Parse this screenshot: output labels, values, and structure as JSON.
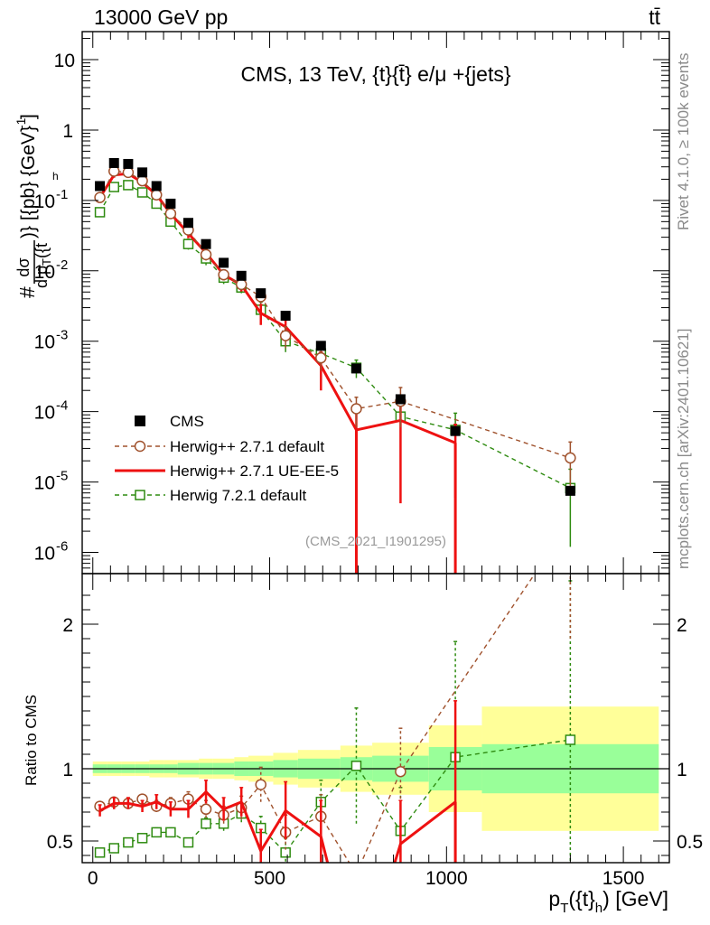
{
  "header": {
    "beam": "13000 GeV pp",
    "process": "tt̄"
  },
  "side_labels": {
    "rivet": "Rivet 4.1.0, ≥ 100k events",
    "source": "mcplots.cern.ch [arXiv:2401.10621]"
  },
  "analysis_id": "(CMS_2021_I1901295)",
  "colors": {
    "data": "#000000",
    "herwigpp_default": "#a0522d",
    "herwigpp_ueee5": "#ee1111",
    "herwig721": "#2e8b10",
    "band_outer": "#ffff99",
    "band_inner": "#99ff99"
  },
  "chart_data": [
    {
      "type": "scatter",
      "panel": "main",
      "title": "CMS, 13 TeV, {t}{t̄} e/μ +{jets}",
      "ylabel_numerator": "#dσ",
      "ylabel_denominator": "d p_T({t_h})",
      "ylabel_suffix": ")} [{pb} {GeV}",
      "ylabel_superscript": "-1",
      "ylabel_close": "]",
      "yscale": "log",
      "ylim": [
        5e-07,
        25
      ],
      "xlim": [
        -30,
        1630
      ],
      "y_ticks": [
        {
          "value": 1e-06,
          "base": "10",
          "exp": "-6"
        },
        {
          "value": 1e-05,
          "base": "10",
          "exp": "-5"
        },
        {
          "value": 0.0001,
          "base": "10",
          "exp": "-4"
        },
        {
          "value": 0.001,
          "base": "10",
          "exp": "-3"
        },
        {
          "value": 0.01,
          "base": "10",
          "exp": "-2"
        },
        {
          "value": 0.1,
          "base": "10",
          "exp": "-1"
        },
        {
          "value": 1,
          "base": "1",
          "exp": ""
        },
        {
          "value": 10,
          "base": "10",
          "exp": ""
        }
      ],
      "legend": [
        {
          "key": "cms",
          "label": "CMS"
        },
        {
          "key": "hpp_def",
          "label": "Herwig++ 2.7.1 default"
        },
        {
          "key": "hpp_ue",
          "label": "Herwig++ 2.7.1 UE-EE-5"
        },
        {
          "key": "h721",
          "label": "Herwig 7.2.1 default"
        }
      ],
      "series": [
        {
          "key": "cms",
          "name": "CMS",
          "marker": "square",
          "x": [
            20,
            60,
            100,
            140,
            180,
            220,
            270,
            320,
            370,
            420,
            475,
            545,
            645,
            745,
            870,
            1025,
            1350
          ],
          "y": [
            0.16,
            0.34,
            0.33,
            0.25,
            0.16,
            0.09,
            0.048,
            0.024,
            0.013,
            0.0085,
            0.0048,
            0.0023,
            0.00086,
            0.00041,
            0.00015,
            5.3e-05,
            7.5e-06
          ]
        },
        {
          "key": "hpp_def",
          "name": "Herwig++ 2.7.1 default",
          "marker": "circle",
          "line": "dashed",
          "x": [
            20,
            60,
            100,
            140,
            180,
            220,
            270,
            320,
            370,
            420,
            475,
            545,
            645,
            745,
            870,
            1350
          ],
          "y": [
            0.11,
            0.26,
            0.25,
            0.19,
            0.12,
            0.065,
            0.038,
            0.017,
            0.0088,
            0.0064,
            0.0043,
            0.0012,
            0.00058,
            0.00011,
            0.00014,
            2.2e-05
          ],
          "err": [
            0.015,
            0.02,
            0.02,
            0.02,
            0.015,
            0.008,
            0.005,
            0.003,
            0.0015,
            0.001,
            0.0009,
            0.0004,
            0.0002,
            5e-05,
            8e-05,
            1.5e-05
          ]
        },
        {
          "key": "hpp_ue",
          "name": "Herwig++ 2.7.1 UE-EE-5",
          "marker": "none",
          "line": "solid",
          "x": [
            20,
            60,
            100,
            140,
            180,
            220,
            270,
            320,
            370,
            420,
            475,
            545,
            645,
            745,
            870,
            1025
          ],
          "y": [
            0.11,
            0.23,
            0.24,
            0.18,
            0.12,
            0.065,
            0.034,
            0.018,
            0.0088,
            0.0063,
            0.0025,
            0.0016,
            0.00045,
            5.5e-05,
            7.5e-05,
            3.6e-05
          ],
          "err": [
            0.012,
            0.02,
            0.02,
            0.02,
            0.015,
            0.008,
            0.005,
            0.003,
            0.0015,
            0.0012,
            0.0008,
            0.0006,
            0.00025,
            5e-05,
            7e-05,
            3e-05
          ],
          "cutoffs": [
            {
              "x": 745,
              "to_bottom": true
            },
            {
              "x": 1025,
              "to_bottom": true
            }
          ]
        },
        {
          "key": "h721",
          "name": "Herwig 7.2.1 default",
          "marker": "open-square",
          "line": "dashed",
          "x": [
            20,
            60,
            100,
            140,
            180,
            220,
            270,
            320,
            370,
            420,
            475,
            545,
            645,
            745,
            870,
            1025,
            1350
          ],
          "y": [
            0.068,
            0.155,
            0.165,
            0.13,
            0.09,
            0.05,
            0.024,
            0.015,
            0.008,
            0.0058,
            0.0028,
            0.001,
            0.00067,
            0.00042,
            8.5e-05,
            5.5e-05,
            8.2e-06
          ],
          "err": [
            0.008,
            0.015,
            0.015,
            0.012,
            0.01,
            0.006,
            0.004,
            0.003,
            0.0015,
            0.001,
            0.0008,
            0.0003,
            0.0002,
            0.00012,
            5e-05,
            4e-05,
            7e-06
          ]
        }
      ]
    },
    {
      "type": "line",
      "panel": "ratio",
      "ylabel": "Ratio to CMS",
      "xlabel_prefix": "p",
      "xlabel_sub": "T",
      "xlabel_mid": "({t}",
      "xlabel_sub2": "h",
      "xlabel_suffix": ") [GeV]",
      "ylim": [
        0.35,
        2.35
      ],
      "xlim": [
        -30,
        1630
      ],
      "x_ticks": [
        0,
        500,
        1000,
        1500
      ],
      "y_ticks": [
        0.5,
        1,
        2
      ],
      "y_tick_labels": [
        "0.5",
        "1",
        "2"
      ],
      "band_bins": {
        "edges": [
          0,
          40,
          80,
          120,
          160,
          200,
          240,
          300,
          340,
          400,
          440,
          510,
          580,
          700,
          790,
          950,
          1100,
          1600
        ],
        "outer_lo": [
          0.95,
          0.95,
          0.95,
          0.95,
          0.94,
          0.94,
          0.94,
          0.93,
          0.93,
          0.92,
          0.91,
          0.89,
          0.87,
          0.84,
          0.82,
          0.7,
          0.57
        ],
        "outer_hi": [
          1.05,
          1.05,
          1.05,
          1.05,
          1.06,
          1.06,
          1.06,
          1.07,
          1.07,
          1.08,
          1.09,
          1.11,
          1.13,
          1.16,
          1.18,
          1.3,
          1.43
        ],
        "inner_lo": [
          0.97,
          0.97,
          0.97,
          0.97,
          0.97,
          0.97,
          0.96,
          0.96,
          0.96,
          0.95,
          0.95,
          0.94,
          0.93,
          0.92,
          0.91,
          0.85,
          0.83
        ],
        "inner_hi": [
          1.03,
          1.03,
          1.03,
          1.03,
          1.03,
          1.03,
          1.04,
          1.04,
          1.04,
          1.05,
          1.05,
          1.06,
          1.07,
          1.08,
          1.09,
          1.15,
          1.17
        ]
      },
      "series": [
        {
          "key": "hpp_def",
          "name": "Herwig++ 2.7.1 default",
          "marker": "circle",
          "line": "dashed",
          "x": [
            20,
            60,
            100,
            140,
            180,
            220,
            270,
            320,
            370,
            420,
            475,
            545,
            645,
            870,
            1350
          ],
          "y": [
            0.74,
            0.77,
            0.76,
            0.79,
            0.74,
            0.76,
            0.79,
            0.72,
            0.68,
            0.73,
            0.89,
            0.56,
            0.67,
            0.98,
            2.9
          ],
          "err": [
            0.03,
            0.03,
            0.03,
            0.03,
            0.04,
            0.04,
            0.05,
            0.06,
            0.06,
            0.08,
            0.12,
            0.12,
            0.15,
            0.3,
            1.0
          ],
          "extra_line_points": [
            {
              "x": 745,
              "y": 0.27
            },
            {
              "x": 1250,
              "y": 2.35
            }
          ]
        },
        {
          "key": "hpp_ue",
          "name": "Herwig++ 2.7.1 UE-EE-5",
          "marker": "none",
          "line": "solid",
          "x": [
            20,
            60,
            100,
            140,
            180,
            220,
            270,
            320,
            370,
            420,
            475,
            545,
            645,
            870,
            1025
          ],
          "y": [
            0.71,
            0.76,
            0.76,
            0.74,
            0.77,
            0.72,
            0.72,
            0.84,
            0.72,
            0.77,
            0.43,
            0.71,
            0.53,
            0.48,
            0.77
          ],
          "err": [
            0.04,
            0.04,
            0.04,
            0.04,
            0.05,
            0.05,
            0.06,
            0.08,
            0.08,
            0.1,
            0.15,
            0.2,
            0.25,
            0.3,
            0.7
          ]
        },
        {
          "key": "h721",
          "name": "Herwig 7.2.1 default",
          "marker": "open-square",
          "line": "dashed",
          "x": [
            20,
            60,
            100,
            140,
            180,
            220,
            270,
            320,
            370,
            420,
            475,
            545,
            645,
            745,
            870,
            1025,
            1350
          ],
          "y": [
            0.42,
            0.45,
            0.49,
            0.52,
            0.56,
            0.56,
            0.49,
            0.62,
            0.62,
            0.69,
            0.59,
            0.42,
            0.77,
            1.02,
            0.57,
            1.08,
            1.2
          ],
          "err": [
            0.02,
            0.02,
            0.02,
            0.02,
            0.03,
            0.03,
            0.03,
            0.04,
            0.05,
            0.06,
            0.08,
            0.1,
            0.15,
            0.4,
            0.3,
            0.8,
            1.1
          ]
        }
      ]
    }
  ]
}
